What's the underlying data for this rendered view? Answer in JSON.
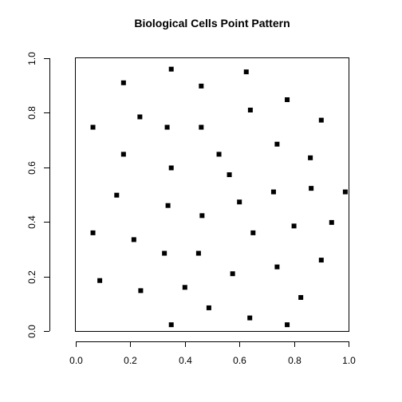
{
  "chart_data": {
    "type": "scatter",
    "title": "Biological Cells Point Pattern",
    "xlabel": "",
    "ylabel": "",
    "xlim": [
      0,
      1
    ],
    "ylim": [
      0,
      1
    ],
    "x_ticks": [
      "0.0",
      "0.2",
      "0.4",
      "0.6",
      "0.8",
      "1.0"
    ],
    "y_ticks": [
      "0.0",
      "0.2",
      "0.4",
      "0.6",
      "0.8",
      "1.0"
    ],
    "grid": false,
    "marker": "filled-square",
    "color": "#000000",
    "points": [
      {
        "x": 0.35,
        "y": 0.96
      },
      {
        "x": 0.625,
        "y": 0.95
      },
      {
        "x": 0.175,
        "y": 0.91
      },
      {
        "x": 0.46,
        "y": 0.898
      },
      {
        "x": 0.775,
        "y": 0.848
      },
      {
        "x": 0.64,
        "y": 0.81
      },
      {
        "x": 0.235,
        "y": 0.785
      },
      {
        "x": 0.9,
        "y": 0.773
      },
      {
        "x": 0.063,
        "y": 0.747
      },
      {
        "x": 0.335,
        "y": 0.747
      },
      {
        "x": 0.46,
        "y": 0.747
      },
      {
        "x": 0.738,
        "y": 0.685
      },
      {
        "x": 0.175,
        "y": 0.648
      },
      {
        "x": 0.525,
        "y": 0.648
      },
      {
        "x": 0.86,
        "y": 0.635
      },
      {
        "x": 0.35,
        "y": 0.598
      },
      {
        "x": 0.563,
        "y": 0.573
      },
      {
        "x": 0.863,
        "y": 0.523
      },
      {
        "x": 0.988,
        "y": 0.51
      },
      {
        "x": 0.725,
        "y": 0.51
      },
      {
        "x": 0.15,
        "y": 0.498
      },
      {
        "x": 0.6,
        "y": 0.473
      },
      {
        "x": 0.338,
        "y": 0.46
      },
      {
        "x": 0.463,
        "y": 0.423
      },
      {
        "x": 0.938,
        "y": 0.398
      },
      {
        "x": 0.8,
        "y": 0.385
      },
      {
        "x": 0.063,
        "y": 0.36
      },
      {
        "x": 0.65,
        "y": 0.36
      },
      {
        "x": 0.213,
        "y": 0.335
      },
      {
        "x": 0.325,
        "y": 0.285
      },
      {
        "x": 0.45,
        "y": 0.285
      },
      {
        "x": 0.9,
        "y": 0.26
      },
      {
        "x": 0.738,
        "y": 0.235
      },
      {
        "x": 0.575,
        "y": 0.21
      },
      {
        "x": 0.088,
        "y": 0.185
      },
      {
        "x": 0.4,
        "y": 0.16
      },
      {
        "x": 0.238,
        "y": 0.148
      },
      {
        "x": 0.825,
        "y": 0.123
      },
      {
        "x": 0.488,
        "y": 0.085
      },
      {
        "x": 0.638,
        "y": 0.048
      },
      {
        "x": 0.35,
        "y": 0.023
      },
      {
        "x": 0.775,
        "y": 0.023
      }
    ]
  }
}
